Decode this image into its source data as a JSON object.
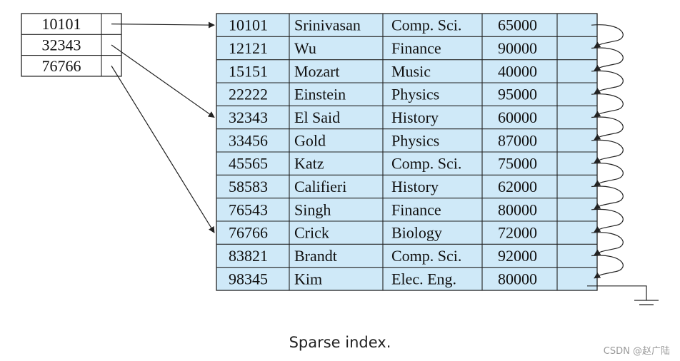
{
  "index": {
    "entries": [
      {
        "key": "10101",
        "points_to_row": 0
      },
      {
        "key": "32343",
        "points_to_row": 4
      },
      {
        "key": "76766",
        "points_to_row": 9
      }
    ]
  },
  "records": {
    "rows": [
      {
        "id": "10101",
        "name": "Srinivasan",
        "dept": "Comp. Sci.",
        "salary": "65000"
      },
      {
        "id": "12121",
        "name": "Wu",
        "dept": "Finance",
        "salary": "90000"
      },
      {
        "id": "15151",
        "name": "Mozart",
        "dept": "Music",
        "salary": "40000"
      },
      {
        "id": "22222",
        "name": "Einstein",
        "dept": "Physics",
        "salary": "95000"
      },
      {
        "id": "32343",
        "name": "El Said",
        "dept": "History",
        "salary": "60000"
      },
      {
        "id": "33456",
        "name": "Gold",
        "dept": "Physics",
        "salary": "87000"
      },
      {
        "id": "45565",
        "name": "Katz",
        "dept": "Comp. Sci.",
        "salary": "75000"
      },
      {
        "id": "58583",
        "name": "Califieri",
        "dept": "History",
        "salary": "62000"
      },
      {
        "id": "76543",
        "name": "Singh",
        "dept": "Finance",
        "salary": "80000"
      },
      {
        "id": "76766",
        "name": "Crick",
        "dept": "Biology",
        "salary": "72000"
      },
      {
        "id": "83821",
        "name": "Brandt",
        "dept": "Comp. Sci.",
        "salary": "92000"
      },
      {
        "id": "98345",
        "name": "Kim",
        "dept": "Elec. Eng.",
        "salary": "80000"
      }
    ]
  },
  "caption": "Sparse index.",
  "watermark": "CSDN @赵广陆",
  "colors": {
    "record_fill": "#cfe9f8",
    "line": "#222222"
  }
}
